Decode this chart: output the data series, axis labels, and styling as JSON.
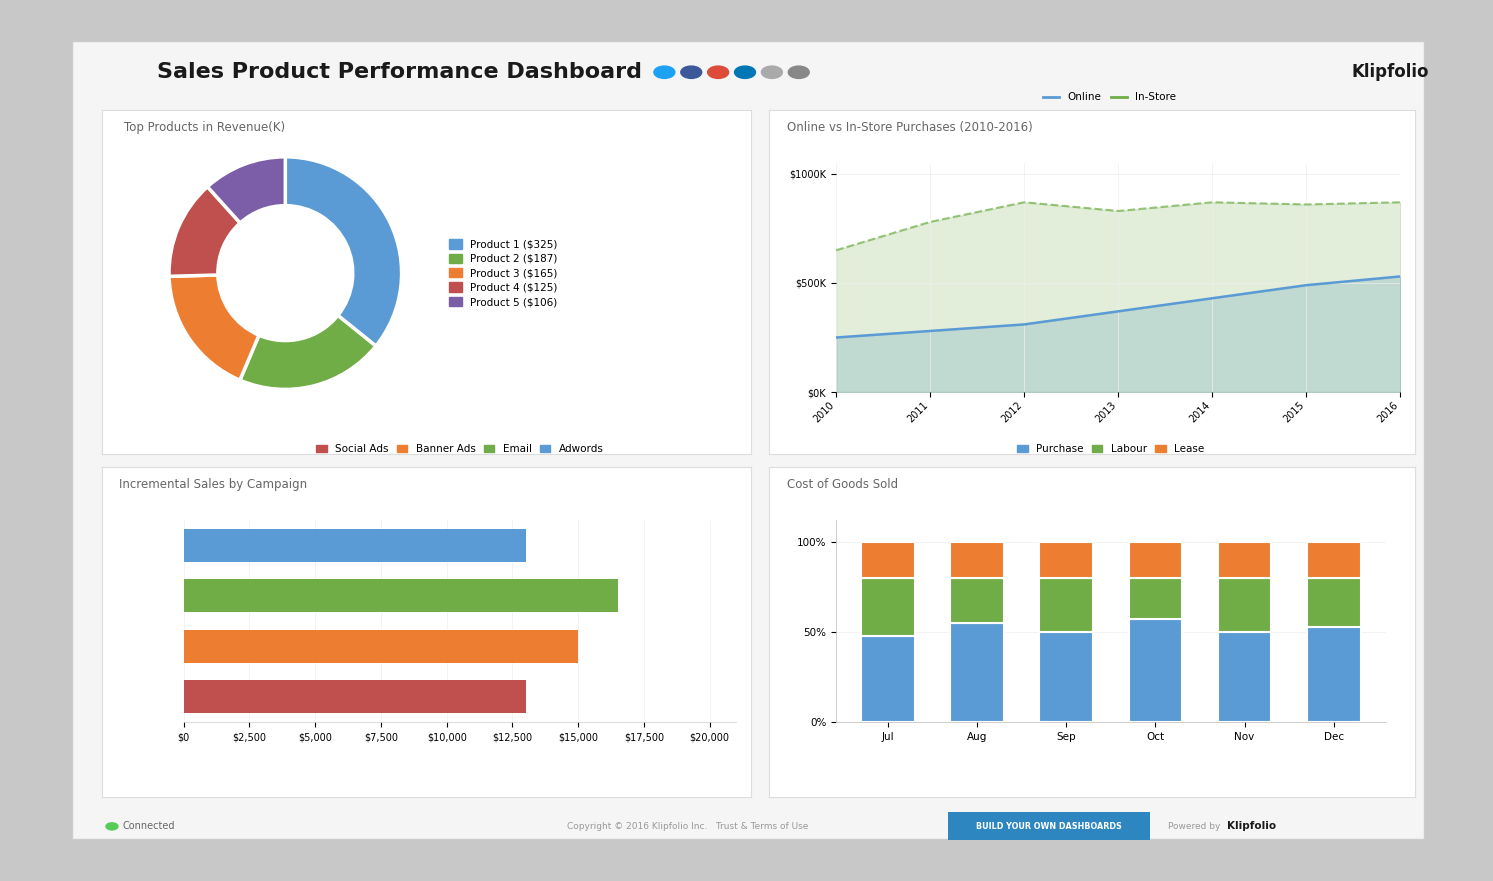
{
  "bg_color": "#c8c8c8",
  "dashboard_bg": "#f0f0f0",
  "title": "Sales Product Performance Dashboard",
  "title_color": "#1a1a1a",
  "title_fontsize": 16,
  "donut_title": "Top Products in Revenue(K)",
  "donut_labels": [
    "Product 1 ($325)",
    "Product 2 ($187)",
    "Product 3 ($165)",
    "Product 4 ($125)",
    "Product 5 ($106)"
  ],
  "donut_values": [
    325,
    187,
    165,
    125,
    106
  ],
  "donut_colors": [
    "#5b9bd5",
    "#70ad47",
    "#ed7d31",
    "#c0504d",
    "#7b5ea7"
  ],
  "online_title": "Online vs In-Store Purchases (2010-2016)",
  "online_years": [
    2010,
    2011,
    2012,
    2013,
    2014,
    2015,
    2016
  ],
  "online_values": [
    250000,
    280000,
    310000,
    370000,
    430000,
    490000,
    530000
  ],
  "instore_values": [
    650000,
    780000,
    870000,
    830000,
    870000,
    860000,
    870000
  ],
  "online_color": "#5b9bd5",
  "instore_color": "#70ad47",
  "campaign_title": "Incremental Sales by Campaign",
  "campaign_categories": [
    "Social Ads",
    "Banner Ads",
    "Email",
    "Adwords"
  ],
  "campaign_colors": [
    "#c0504d",
    "#ed7d31",
    "#70ad47",
    "#5b9bd5"
  ],
  "campaign_values": [
    13000,
    15000,
    16500,
    13000
  ],
  "cogs_title": "Cost of Goods Sold",
  "cogs_months": [
    "Jul",
    "Aug",
    "Sep",
    "Oct",
    "Nov",
    "Dec"
  ],
  "cogs_purchase": [
    0.48,
    0.55,
    0.5,
    0.57,
    0.5,
    0.53
  ],
  "cogs_labour": [
    0.32,
    0.25,
    0.3,
    0.23,
    0.3,
    0.27
  ],
  "cogs_lease": [
    0.2,
    0.2,
    0.2,
    0.2,
    0.2,
    0.2
  ],
  "cogs_colors": [
    "#5b9bd5",
    "#70ad47",
    "#ed7d31"
  ],
  "cogs_labels": [
    "Purchase",
    "Labour",
    "Lease"
  ],
  "connected_text": "Connected",
  "build_btn_text": "BUILD YOUR OWN DASHBOARDS",
  "powered_text": "Powered by",
  "klipfolio_footer": "Klipfolio",
  "klipfolio_logo": "Klipfolio",
  "footer_copyright": "Copyright © 2016 Klipfolio Inc.   Trust & Terms of Use",
  "icon_colors": [
    "#1da1f2",
    "#3b5998",
    "#dd4b39",
    "#0077b5",
    "#aaaaaa",
    "#888888"
  ]
}
